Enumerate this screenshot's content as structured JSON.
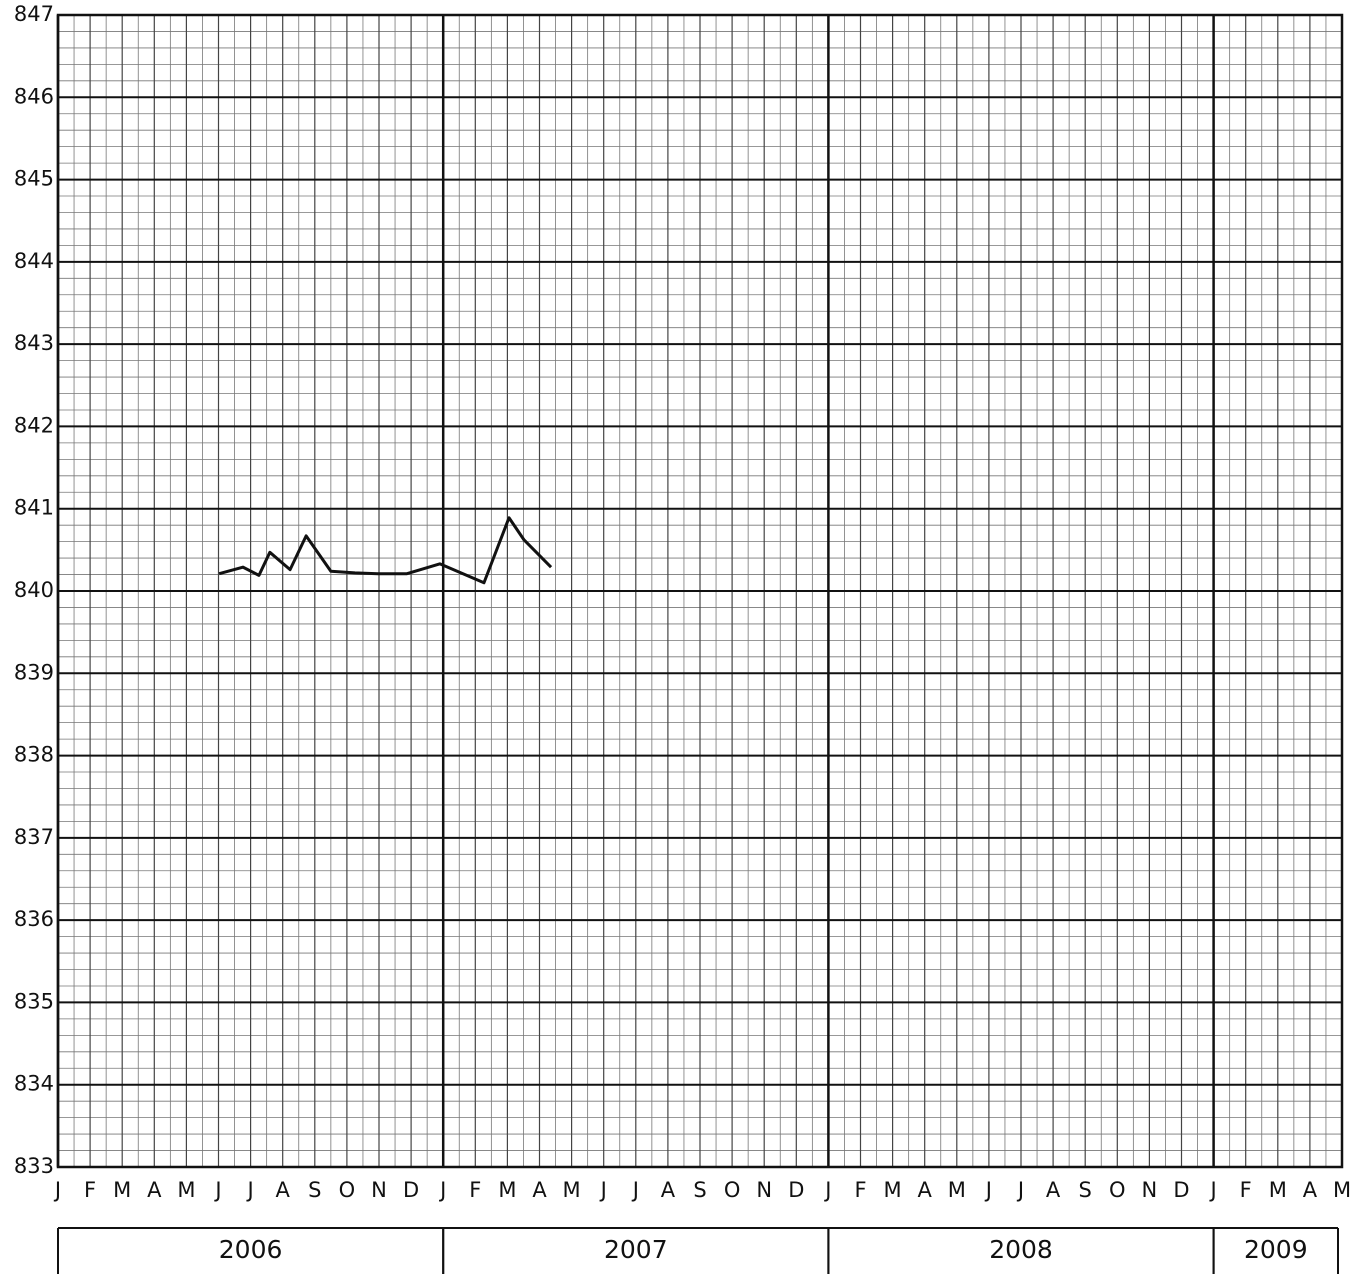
{
  "chart_data": {
    "type": "line",
    "x": [
      5.02,
      5.76,
      6.26,
      6.6,
      7.23,
      7.73,
      8.5,
      9.25,
      9.97,
      10.87,
      11.9,
      13.27,
      14.05,
      14.52,
      15.36
    ],
    "series": [
      {
        "color": "#111111",
        "values": [
          840.21,
          840.29,
          840.19,
          840.47,
          840.26,
          840.67,
          840.24,
          840.22,
          840.21,
          840.21,
          840.33,
          840.1,
          840.89,
          840.62,
          840.29
        ]
      }
    ],
    "xlim": [
      0,
      40
    ],
    "xticks": [
      {
        "value": 0,
        "label": "J"
      },
      {
        "value": 1,
        "label": "F"
      },
      {
        "value": 2,
        "label": "M"
      },
      {
        "value": 3,
        "label": "A"
      },
      {
        "value": 4,
        "label": "M"
      },
      {
        "value": 5,
        "label": "J"
      },
      {
        "value": 6,
        "label": "J"
      },
      {
        "value": 7,
        "label": "A"
      },
      {
        "value": 8,
        "label": "S"
      },
      {
        "value": 9,
        "label": "O"
      },
      {
        "value": 10,
        "label": "N"
      },
      {
        "value": 11,
        "label": "D"
      },
      {
        "value": 12,
        "label": "J"
      },
      {
        "value": 13,
        "label": "F"
      },
      {
        "value": 14,
        "label": "M"
      },
      {
        "value": 15,
        "label": "A"
      },
      {
        "value": 16,
        "label": "M"
      },
      {
        "value": 17,
        "label": "J"
      },
      {
        "value": 18,
        "label": "J"
      },
      {
        "value": 19,
        "label": "A"
      },
      {
        "value": 20,
        "label": "S"
      },
      {
        "value": 21,
        "label": "O"
      },
      {
        "value": 22,
        "label": "N"
      },
      {
        "value": 23,
        "label": "D"
      },
      {
        "value": 24,
        "label": "J"
      },
      {
        "value": 25,
        "label": "F"
      },
      {
        "value": 26,
        "label": "M"
      },
      {
        "value": 27,
        "label": "A"
      },
      {
        "value": 28,
        "label": "M"
      },
      {
        "value": 29,
        "label": "J"
      },
      {
        "value": 30,
        "label": "J"
      },
      {
        "value": 31,
        "label": "A"
      },
      {
        "value": 32,
        "label": "S"
      },
      {
        "value": 33,
        "label": "O"
      },
      {
        "value": 34,
        "label": "N"
      },
      {
        "value": 35,
        "label": "D"
      },
      {
        "value": 36,
        "label": "J"
      },
      {
        "value": 37,
        "label": "F"
      },
      {
        "value": 38,
        "label": "M"
      },
      {
        "value": 39,
        "label": "A"
      },
      {
        "value": 40,
        "label": "M"
      }
    ],
    "x_groups": [
      {
        "label": "2006",
        "from": 0,
        "to": 12
      },
      {
        "label": "2007",
        "from": 12,
        "to": 24
      },
      {
        "label": "2008",
        "from": 24,
        "to": 36
      },
      {
        "label": "2009",
        "from": 36,
        "to": 40
      }
    ],
    "ylim": [
      833,
      847
    ],
    "yticks": [
      833,
      834,
      835,
      836,
      837,
      838,
      839,
      840,
      841,
      842,
      843,
      844,
      845,
      846,
      847
    ],
    "grid": true,
    "x_minor_divisions": 2,
    "y_minor_divisions": 5
  }
}
